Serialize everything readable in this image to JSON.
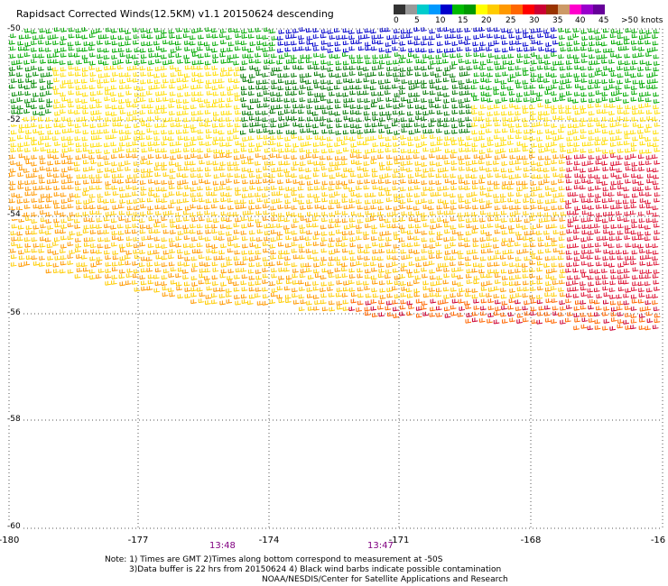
{
  "title": "Rapidsact Corrected Winds(12.5KM) v1.1 20150624 descending",
  "legend": {
    "colors": [
      "#333333",
      "#999999",
      "#00cccc",
      "#0099ff",
      "#0000cc",
      "#00bb00",
      "#009900",
      "#ffff00",
      "#ffcc00",
      "#ff9900",
      "#ff6600",
      "#ff0000",
      "#cc0033",
      "#993300",
      "#cc9966",
      "#ff00cc",
      "#9900cc",
      "#660099"
    ],
    "labels": [
      "0",
      "5",
      "10",
      "15",
      "20",
      "25",
      "30",
      "35",
      "40",
      "45",
      ">50 knots"
    ],
    "unit": "knots"
  },
  "map": {
    "lat_labels": [
      "-50",
      "-52",
      "-54",
      "-56",
      "-58",
      "-60"
    ],
    "lon_labels": [
      "-180",
      "-177",
      "-174",
      "-171",
      "-168",
      "-16"
    ],
    "lat_range": [
      -60,
      -50
    ],
    "lon_range": [
      -180,
      -165
    ],
    "grid": "dotted",
    "pass_times": [
      "13:48",
      "13:47"
    ]
  },
  "notes": [
    "Note: 1) Times are GMT 2)Times along bottom correspond to measurement at -50S",
    "3)Data buffer is 22 hrs from 20150624 4) Black wind barbs indicate possible contamination",
    "NOAA/NESDIS/Center for Satellite Applications and Research"
  ]
}
